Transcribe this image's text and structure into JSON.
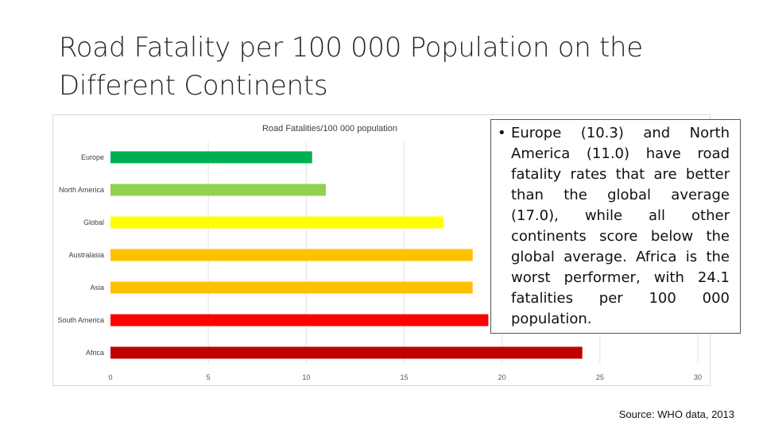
{
  "slide": {
    "title": "Road Fatality per 100 000 Population on the Different Continents",
    "source": "Source: WHO data, 2013"
  },
  "note": {
    "bullet": "•",
    "text": "Europe (10.3) and North America (11.0) have road fatality rates that are better than the global average (17.0), while all other continents score below the global average. Africa is the worst performer, with 24.1 fatalities per 100 000 population."
  },
  "chart_data": {
    "type": "bar",
    "orientation": "horizontal",
    "title": "Road Fatalities/100 000 population",
    "categories": [
      "Europe",
      "North America",
      "Global",
      "Australasia",
      "Asia",
      "South America",
      "Africa"
    ],
    "values": [
      10.3,
      11.0,
      17.0,
      18.5,
      18.5,
      19.3,
      24.1
    ],
    "colors": [
      "#00b050",
      "#92d050",
      "#ffff00",
      "#ffc000",
      "#ffc000",
      "#ff0000",
      "#c00000"
    ],
    "xlim": [
      0,
      30
    ],
    "xticks": [
      "0",
      "5",
      "10",
      "15",
      "20",
      "25",
      "30"
    ],
    "grid": true,
    "legend": "none"
  }
}
